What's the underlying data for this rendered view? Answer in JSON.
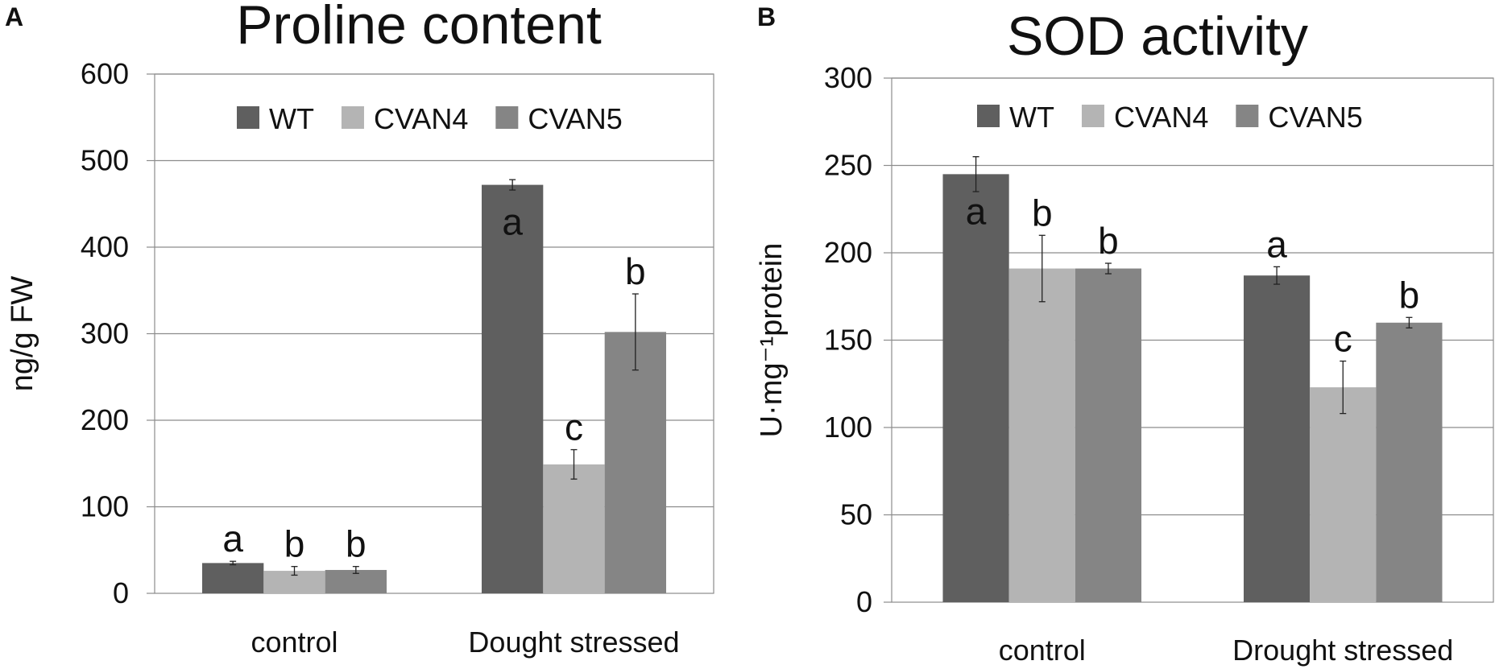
{
  "chart_data": [
    {
      "panel_label": "A",
      "type": "bar",
      "title": "Proline content",
      "ylabel": "ng/g FW",
      "xlabel": "",
      "ylim": [
        0,
        600
      ],
      "yticks": [
        0,
        100,
        200,
        300,
        400,
        500,
        600
      ],
      "grid": true,
      "legend_position": "top-center",
      "categories": [
        "control",
        "Dought stressed"
      ],
      "series": [
        {
          "name": "WT",
          "color": "#5f5f5f",
          "values": [
            35,
            472
          ],
          "errors": [
            2,
            6
          ],
          "letters": [
            "a",
            "a"
          ],
          "letter_inside": [
            false,
            true
          ]
        },
        {
          "name": "CVAN4",
          "color": "#b4b4b4",
          "values": [
            26,
            149
          ],
          "errors": [
            5,
            17
          ],
          "letters": [
            "b",
            "c"
          ],
          "letter_inside": [
            false,
            false
          ]
        },
        {
          "name": "CVAN5",
          "color": "#858585",
          "values": [
            27,
            302
          ],
          "errors": [
            4,
            44
          ],
          "letters": [
            "b",
            "b"
          ],
          "letter_inside": [
            false,
            false
          ]
        }
      ]
    },
    {
      "panel_label": "B",
      "type": "bar",
      "title": "SOD activity",
      "ylabel": "U·mg⁻¹protein",
      "xlabel": "",
      "ylim": [
        0,
        300
      ],
      "yticks": [
        0,
        50,
        100,
        150,
        200,
        250,
        300
      ],
      "grid": true,
      "legend_position": "top-center",
      "categories": [
        "control",
        "Drought stressed"
      ],
      "series": [
        {
          "name": "WT",
          "color": "#5f5f5f",
          "values": [
            245,
            187
          ],
          "errors": [
            10,
            5
          ],
          "letters": [
            "a",
            "a"
          ],
          "letter_inside": [
            true,
            false
          ]
        },
        {
          "name": "CVAN4",
          "color": "#b4b4b4",
          "values": [
            191,
            123
          ],
          "errors": [
            19,
            15
          ],
          "letters": [
            "b",
            "c"
          ],
          "letter_inside": [
            false,
            false
          ]
        },
        {
          "name": "CVAN5",
          "color": "#858585",
          "values": [
            191,
            160
          ],
          "errors": [
            3,
            3
          ],
          "letters": [
            "b",
            "b"
          ],
          "letter_inside": [
            false,
            false
          ]
        }
      ]
    }
  ]
}
